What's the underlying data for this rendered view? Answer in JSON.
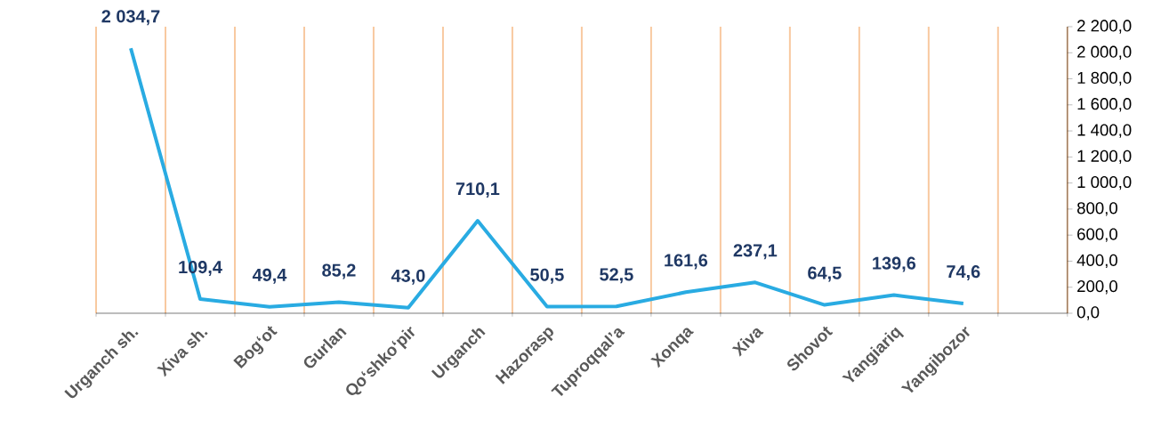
{
  "chart_data": {
    "type": "line",
    "categories": [
      "Urganch sh.",
      "Xiva sh.",
      "Bog‘ot",
      "Gurlan",
      "Qo‘shko‘pir",
      "Urganch",
      "Hazorasp",
      "Tuproqqal’a",
      "Xonqa",
      "Xiva",
      "Shovot",
      "Yangiariq",
      "Yangibozor",
      null
    ],
    "values": [
      2034.7,
      109.4,
      49.4,
      85.2,
      43.0,
      710.1,
      50.5,
      52.5,
      161.6,
      237.1,
      64.5,
      139.6,
      74.6,
      null
    ],
    "value_labels": [
      "2 034,7",
      "109,4",
      "49,4",
      "85,2",
      "43,0",
      "710,1",
      "50,5",
      "52,5",
      "161,6",
      "237,1",
      "64,5",
      "139,6",
      "74,6",
      null
    ],
    "color": "#29abe2",
    "ylim": [
      0,
      2200
    ],
    "yticks": [
      {
        "value": 0,
        "label": "0,0"
      },
      {
        "value": 200,
        "label": "200,0"
      },
      {
        "value": 400,
        "label": "400,0"
      },
      {
        "value": 600,
        "label": "600,0"
      },
      {
        "value": 800,
        "label": "800,0"
      },
      {
        "value": 1000,
        "label": "1 000,0"
      },
      {
        "value": 1200,
        "label": "1 200,0"
      },
      {
        "value": 1400,
        "label": "1 400,0"
      },
      {
        "value": 1600,
        "label": "1 600,0"
      },
      {
        "value": 1800,
        "label": "1 800,0"
      },
      {
        "value": 2000,
        "label": "2 000,0"
      },
      {
        "value": 2200,
        "label": "2 200,0"
      }
    ],
    "grid": "x",
    "marker": "none",
    "line_style": "solid"
  }
}
